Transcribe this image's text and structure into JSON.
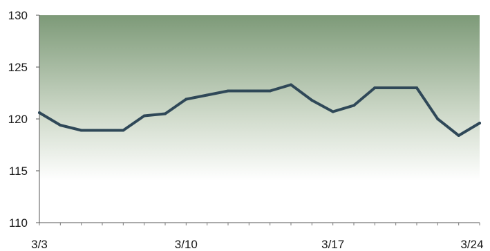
{
  "chart_data": {
    "type": "line",
    "x": [
      "3/3",
      "3/4",
      "3/5",
      "3/6",
      "3/7",
      "3/8",
      "3/9",
      "3/10",
      "3/11",
      "3/12",
      "3/13",
      "3/14",
      "3/15",
      "3/16",
      "3/17",
      "3/18",
      "3/19",
      "3/20",
      "3/21",
      "3/22",
      "3/23",
      "3/24"
    ],
    "x_tick_labels": [
      "3/3",
      "3/10",
      "3/17",
      "3/24"
    ],
    "series": [
      {
        "values": [
          120.6,
          119.4,
          118.9,
          118.9,
          118.9,
          120.3,
          120.5,
          121.9,
          122.3,
          122.7,
          122.7,
          122.7,
          123.3,
          121.8,
          120.7,
          121.3,
          123.0,
          123.0,
          123.0,
          120.0,
          118.4,
          119.6
        ]
      }
    ],
    "ylim": [
      110,
      130
    ],
    "y_ticks": [
      110,
      115,
      120,
      125,
      130
    ],
    "grid": false,
    "legend": "none",
    "line_color": "#2f4858",
    "background_gradient": [
      "#7d9a78",
      "#ffffff"
    ]
  }
}
